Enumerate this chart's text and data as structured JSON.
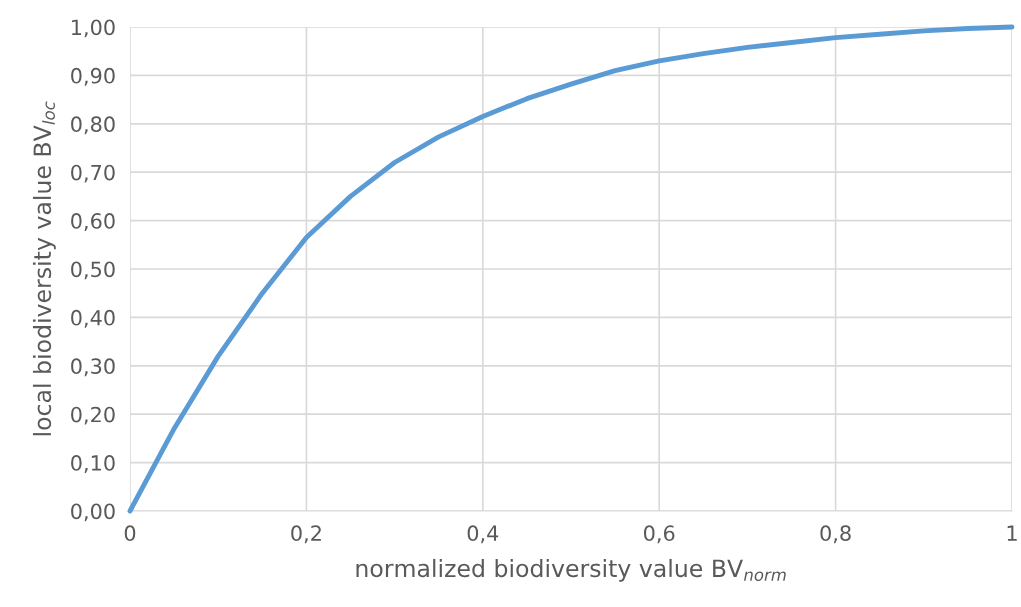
{
  "chart_data": {
    "type": "line",
    "xlabel": "normalized biodiversity value BV$_{norm}$",
    "ylabel": "local biodiversity value BV$_{loc}$",
    "x": [
      0,
      0.05,
      0.1,
      0.15,
      0.2,
      0.25,
      0.3,
      0.35,
      0.4,
      0.45,
      0.5,
      0.55,
      0.6,
      0.65,
      0.7,
      0.75,
      0.8,
      0.85,
      0.9,
      0.95,
      1
    ],
    "series": [
      {
        "color": "#5b9bd5",
        "values": [
          0,
          0.17,
          0.32,
          0.45,
          0.565,
          0.65,
          0.72,
          0.773,
          0.815,
          0.852,
          0.882,
          0.91,
          0.93,
          0.945,
          0.958,
          0.968,
          0.978,
          0.985,
          0.992,
          0.997,
          1.0
        ]
      }
    ],
    "xlim": [
      0,
      1
    ],
    "xticks": [
      0,
      {
        "value": 0.2,
        "label": "0,2"
      },
      {
        "value": 0.4,
        "label": "0,4"
      },
      {
        "value": 0.6,
        "label": "0,6"
      },
      {
        "value": 0.8,
        "label": "0,8"
      },
      1
    ],
    "ylim": [
      0,
      1
    ],
    "yticks": [
      {
        "value": 0,
        "label": "0,00"
      },
      {
        "value": 0.1,
        "label": "0,10"
      },
      {
        "value": 0.2,
        "label": "0,20"
      },
      {
        "value": 0.3,
        "label": "0,30"
      },
      {
        "value": 0.4,
        "label": "0,40"
      },
      {
        "value": 0.5,
        "label": "0,50"
      },
      {
        "value": 0.6,
        "label": "0,60"
      },
      {
        "value": 0.7,
        "label": "0,70"
      },
      {
        "value": 0.8,
        "label": "0,80"
      },
      {
        "value": 0.9,
        "label": "0,90"
      },
      {
        "value": 1,
        "label": "1,00"
      }
    ],
    "grid": true,
    "marker": "none",
    "line_style": "solid"
  }
}
